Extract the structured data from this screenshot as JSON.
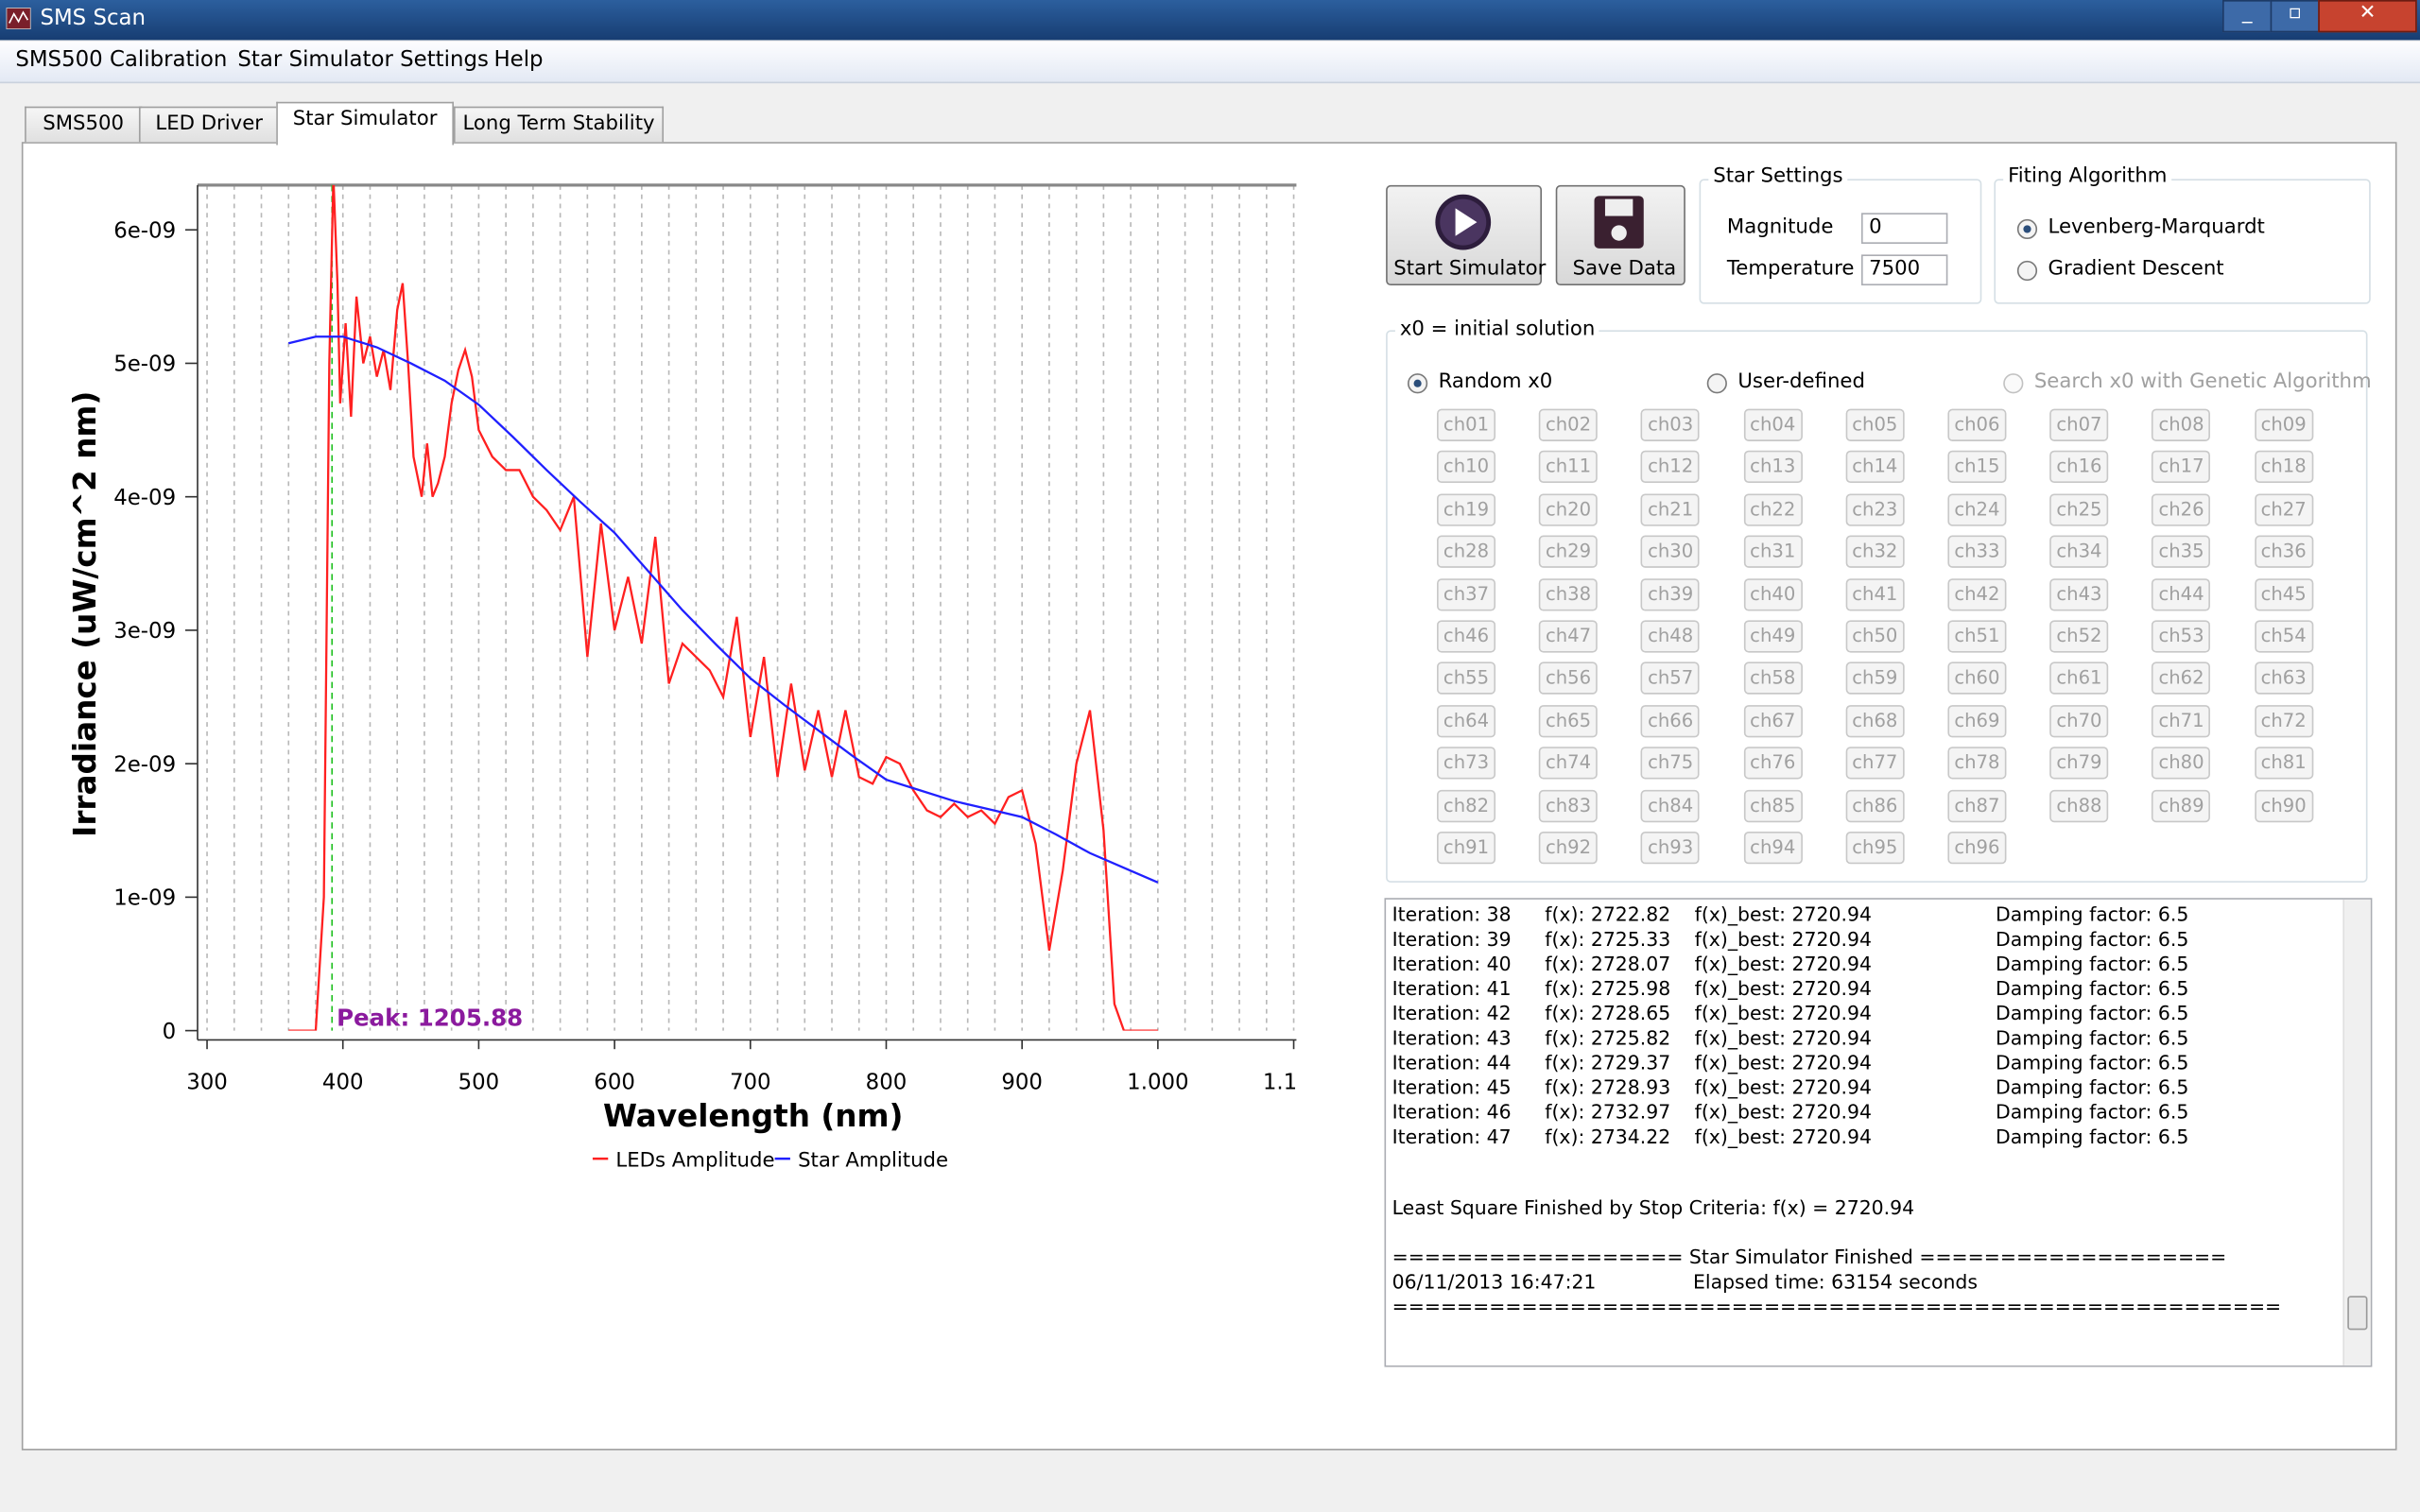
{
  "window": {
    "title": "SMS Scan"
  },
  "menu": [
    "SMS500 Calibration",
    "Star Simulator Settings",
    "Help"
  ],
  "tabs": [
    "SMS500",
    "LED Driver",
    "Star Simulator",
    "Long Term Stability"
  ],
  "active_tab": 2,
  "chart_data": {
    "type": "line",
    "x_label": "Wavelength (nm)",
    "y_label": "Irradiance (uW/cm^2 nm)",
    "xlim": [
      293,
      1102
    ],
    "ylim": [
      0,
      6.335e-09
    ],
    "xticks": [
      300,
      400,
      500,
      600,
      700,
      800,
      900,
      {
        "value": 1000,
        "label": "1.000"
      },
      {
        "value": 1100,
        "label": "1.100"
      }
    ],
    "xminorticks": [
      300,
      320,
      340,
      360,
      380,
      400,
      420,
      440,
      460,
      480,
      500,
      520,
      540,
      560,
      580,
      600,
      620,
      640,
      660,
      680,
      700,
      720,
      740,
      760,
      780,
      800,
      820,
      840,
      860,
      880,
      900,
      920,
      940,
      960,
      980,
      1000,
      1020,
      1040,
      1060,
      1080,
      1100
    ],
    "yticks": [
      0,
      {
        "value": 1e-09,
        "label": "1e-09"
      },
      {
        "value": 2e-09,
        "label": "2e-09"
      },
      {
        "value": 3e-09,
        "label": "3e-09"
      },
      {
        "value": 4e-09,
        "label": "4e-09"
      },
      {
        "value": 5e-09,
        "label": "5e-09"
      },
      {
        "value": 6e-09,
        "label": "6e-09"
      }
    ],
    "grid": true,
    "series": [
      {
        "name": "LEDs Amplitude",
        "color": "#ff2020",
        "x": [
          360,
          380,
          386,
          390,
          393,
          396,
          398,
          402,
          406,
          410,
          415,
          420,
          425,
          430,
          435,
          440,
          444,
          448,
          452,
          458,
          462,
          466,
          470,
          475,
          480,
          485,
          490,
          495,
          500,
          510,
          520,
          530,
          540,
          550,
          560,
          570,
          580,
          590,
          600,
          610,
          620,
          630,
          640,
          650,
          660,
          670,
          680,
          690,
          700,
          710,
          720,
          730,
          740,
          750,
          760,
          770,
          780,
          790,
          800,
          810,
          820,
          830,
          840,
          850,
          860,
          870,
          880,
          890,
          900,
          910,
          920,
          930,
          940,
          950,
          960,
          968,
          975,
          1000
        ],
        "values": [
          0,
          0,
          1e-09,
          5e-09,
          6.4e-09,
          5.6e-09,
          4.7e-09,
          5.3e-09,
          4.6e-09,
          5.5e-09,
          5e-09,
          5.2e-09,
          4.9e-09,
          5.1e-09,
          4.8e-09,
          5.4e-09,
          5.6e-09,
          5e-09,
          4.3e-09,
          4e-09,
          4.4e-09,
          4e-09,
          4.1e-09,
          4.3e-09,
          4.7e-09,
          4.95e-09,
          5.1e-09,
          4.9e-09,
          4.5e-09,
          4.3e-09,
          4.2e-09,
          4.2e-09,
          4e-09,
          3.9e-09,
          3.75e-09,
          4e-09,
          2.8e-09,
          3.8e-09,
          3e-09,
          3.4e-09,
          2.9e-09,
          3.7e-09,
          2.6e-09,
          2.9e-09,
          2.8e-09,
          2.7e-09,
          2.5e-09,
          3.1e-09,
          2.2e-09,
          2.8e-09,
          1.9e-09,
          2.6e-09,
          1.95e-09,
          2.4e-09,
          1.9e-09,
          2.4e-09,
          1.9e-09,
          1.85e-09,
          2.05e-09,
          2e-09,
          1.8e-09,
          1.65e-09,
          1.6e-09,
          1.7e-09,
          1.6e-09,
          1.65e-09,
          1.55e-09,
          1.75e-09,
          1.8e-09,
          1.4e-09,
          6e-10,
          1.2e-09,
          2e-09,
          2.4e-09,
          1.5e-09,
          2e-10,
          0,
          0
        ]
      },
      {
        "name": "Star Amplitude",
        "color": "#2020ff",
        "x": [
          360,
          380,
          400,
          425,
          450,
          475,
          500,
          525,
          550,
          575,
          600,
          625,
          650,
          675,
          700,
          725,
          750,
          775,
          800,
          825,
          850,
          875,
          900,
          925,
          950,
          975,
          1000
        ],
        "values": [
          5.15e-09,
          5.2e-09,
          5.2e-09,
          5.12e-09,
          5e-09,
          4.87e-09,
          4.69e-09,
          4.45e-09,
          4.2e-09,
          3.96e-09,
          3.73e-09,
          3.44e-09,
          3.15e-09,
          2.89e-09,
          2.64e-09,
          2.44e-09,
          2.25e-09,
          2.06e-09,
          1.88e-09,
          1.8e-09,
          1.72e-09,
          1.66e-09,
          1.6e-09,
          1.47e-09,
          1.33e-09,
          1.22e-09,
          1.11e-09
        ]
      }
    ],
    "annotations": [
      {
        "text": "Peak: 1205.88",
        "x": 392
      }
    ]
  },
  "buttons": [
    "Start Simulator",
    "Save Data"
  ],
  "star_settings": {
    "title": "Star Settings",
    "fields": [
      {
        "label": "Magnitude",
        "value": "0"
      },
      {
        "label": "Temperature",
        "value": "7500"
      }
    ]
  },
  "fitting": {
    "title": "Fiting Algorithm",
    "options": [
      "Levenberg-Marquardt",
      "Gradient Descent"
    ],
    "selected": 0
  },
  "x0": {
    "title": "x0 = initial solution",
    "options": [
      "Random x0",
      "User-defined",
      "Search x0 with Genetic Algorithm"
    ],
    "selected": 0,
    "channels": [
      "ch01",
      "ch02",
      "ch03",
      "ch04",
      "ch05",
      "ch06",
      "ch07",
      "ch08",
      "ch09",
      "ch10",
      "ch11",
      "ch12",
      "ch13",
      "ch14",
      "ch15",
      "ch16",
      "ch17",
      "ch18",
      "ch19",
      "ch20",
      "ch21",
      "ch22",
      "ch23",
      "ch24",
      "ch25",
      "ch26",
      "ch27",
      "ch28",
      "ch29",
      "ch30",
      "ch31",
      "ch32",
      "ch33",
      "ch34",
      "ch35",
      "ch36",
      "ch37",
      "ch38",
      "ch39",
      "ch40",
      "ch41",
      "ch42",
      "ch43",
      "ch44",
      "ch45",
      "ch46",
      "ch47",
      "ch48",
      "ch49",
      "ch50",
      "ch51",
      "ch52",
      "ch53",
      "ch54",
      "ch55",
      "ch56",
      "ch57",
      "ch58",
      "ch59",
      "ch60",
      "ch61",
      "ch62",
      "ch63",
      "ch64",
      "ch65",
      "ch66",
      "ch67",
      "ch68",
      "ch69",
      "ch70",
      "ch71",
      "ch72",
      "ch73",
      "ch74",
      "ch75",
      "ch76",
      "ch77",
      "ch78",
      "ch79",
      "ch80",
      "ch81",
      "ch82",
      "ch83",
      "ch84",
      "ch85",
      "ch86",
      "ch87",
      "ch88",
      "ch89",
      "ch90",
      "ch91",
      "ch92",
      "ch93",
      "ch94",
      "ch95",
      "ch96"
    ]
  },
  "log": {
    "rows": [
      [
        "Iteration: 38",
        "f(x): 2722.82",
        "f(x)_best: 2720.94",
        "Damping factor: 6.5"
      ],
      [
        "Iteration: 39",
        "f(x): 2725.33",
        "f(x)_best: 2720.94",
        "Damping factor: 6.5"
      ],
      [
        "Iteration: 40",
        "f(x): 2728.07",
        "f(x)_best: 2720.94",
        "Damping factor: 6.5"
      ],
      [
        "Iteration: 41",
        "f(x): 2725.98",
        "f(x)_best: 2720.94",
        "Damping factor: 6.5"
      ],
      [
        "Iteration: 42",
        "f(x): 2728.65",
        "f(x)_best: 2720.94",
        "Damping factor: 6.5"
      ],
      [
        "Iteration: 43",
        "f(x): 2725.82",
        "f(x)_best: 2720.94",
        "Damping factor: 6.5"
      ],
      [
        "Iteration: 44",
        "f(x): 2729.37",
        "f(x)_best: 2720.94",
        "Damping factor: 6.5"
      ],
      [
        "Iteration: 45",
        "f(x): 2728.93",
        "f(x)_best: 2720.94",
        "Damping factor: 6.5"
      ],
      [
        "Iteration: 46",
        "f(x): 2732.97",
        "f(x)_best: 2720.94",
        "Damping factor: 6.5"
      ],
      [
        "Iteration: 47",
        "f(x): 2734.22",
        "f(x)_best: 2720.94",
        "Damping factor: 6.5"
      ]
    ],
    "finish": "Least Square Finished by Stop Criteria: f(x) = 2720.94",
    "banner": "================== Star Simulator Finished ===================",
    "date": "06/11/2013 16:47:21",
    "elapsed": "Elapsed time: 63154 seconds",
    "rule": "======================================================="
  }
}
